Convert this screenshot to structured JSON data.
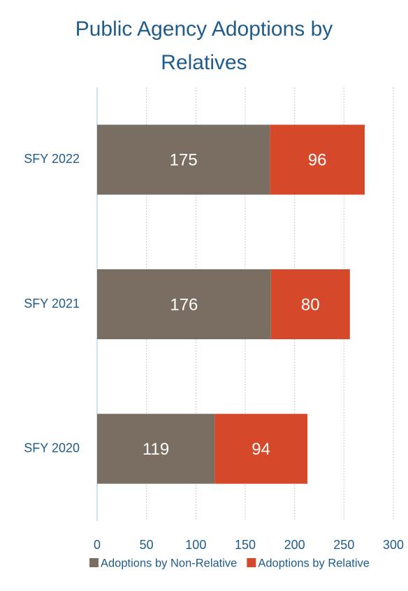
{
  "chart_data": {
    "type": "stacked-bar-horizontal",
    "title": "Public Agency Adoptions by Relatives",
    "categories": [
      "SFY 2022",
      "SFY 2021",
      "SFY 2020"
    ],
    "series": [
      {
        "name": "Adoptions by Non-Relative",
        "color": "#7a6e63",
        "values": [
          175,
          176,
          119
        ]
      },
      {
        "name": "Adoptions by Relative",
        "color": "#d5492a",
        "values": [
          96,
          80,
          94
        ]
      }
    ],
    "xlim": [
      0,
      300
    ],
    "xticks": [
      0,
      50,
      100,
      150,
      200,
      250,
      300
    ],
    "grid": true,
    "legend": "bottom"
  }
}
